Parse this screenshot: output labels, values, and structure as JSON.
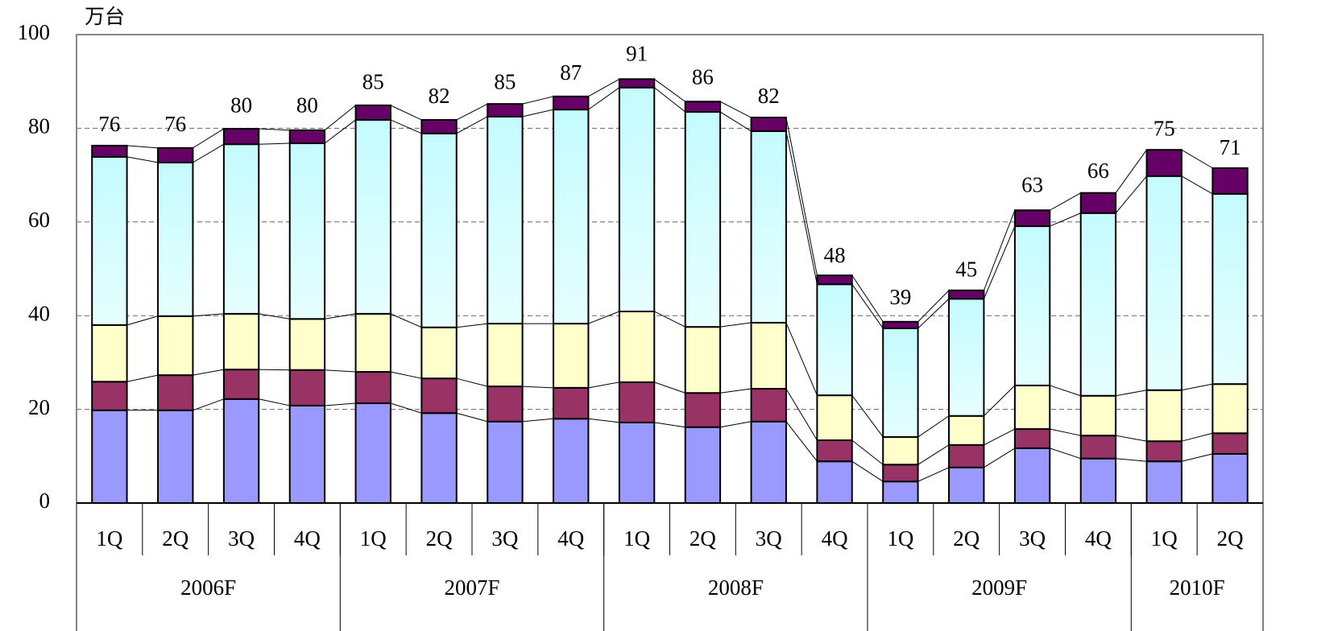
{
  "chart_data": {
    "type": "stacked_bar",
    "y_label": "万台",
    "categories": [
      "1Q",
      "2Q",
      "3Q",
      "4Q",
      "1Q",
      "2Q",
      "3Q",
      "4Q",
      "1Q",
      "2Q",
      "3Q",
      "4Q",
      "1Q",
      "2Q",
      "3Q",
      "4Q",
      "1Q",
      "2Q"
    ],
    "groups": [
      {
        "label": "2006F",
        "span": 4
      },
      {
        "label": "2007F",
        "span": 4
      },
      {
        "label": "2008F",
        "span": 4
      },
      {
        "label": "2009F",
        "span": 4
      },
      {
        "label": "2010F",
        "span": 2
      }
    ],
    "series": [
      {
        "color": "#9999ff",
        "values": [
          19.8,
          19.8,
          22.2,
          20.8,
          21.3,
          19.2,
          17.4,
          18.0,
          17.2,
          16.2,
          17.4,
          8.9,
          4.6,
          7.6,
          11.7,
          9.5,
          8.9,
          10.5
        ]
      },
      {
        "color": "#993366",
        "values": [
          6.1,
          7.5,
          6.3,
          7.6,
          6.7,
          7.4,
          7.5,
          6.6,
          8.6,
          7.3,
          7.0,
          4.5,
          3.6,
          4.8,
          4.1,
          4.9,
          4.3,
          4.4
        ]
      },
      {
        "color": "#ffffcc",
        "values": [
          12.1,
          12.6,
          11.9,
          10.9,
          12.4,
          10.9,
          13.4,
          13.7,
          15.1,
          14.1,
          14.1,
          9.6,
          5.9,
          6.2,
          9.3,
          8.5,
          10.9,
          10.5
        ]
      },
      {
        "color": "#ccffff",
        "values": [
          35.9,
          32.8,
          36.2,
          37.5,
          41.4,
          41.4,
          44.2,
          45.7,
          47.8,
          45.9,
          40.9,
          23.7,
          23.2,
          25.0,
          34.0,
          39.0,
          45.7,
          40.6
        ]
      },
      {
        "color": "#660066",
        "values": [
          2.4,
          3.1,
          3.3,
          2.8,
          3.1,
          2.9,
          2.7,
          2.8,
          1.8,
          2.2,
          2.9,
          1.9,
          1.4,
          1.8,
          3.4,
          4.3,
          5.6,
          5.5
        ]
      }
    ],
    "totals": [
      76,
      76,
      80,
      80,
      85,
      82,
      85,
      87,
      91,
      86,
      82,
      48,
      39,
      45,
      63,
      66,
      75,
      71
    ],
    "ylim": [
      0,
      100
    ],
    "yticks": [
      0,
      20,
      40,
      60,
      80,
      100
    ],
    "grid": true
  }
}
